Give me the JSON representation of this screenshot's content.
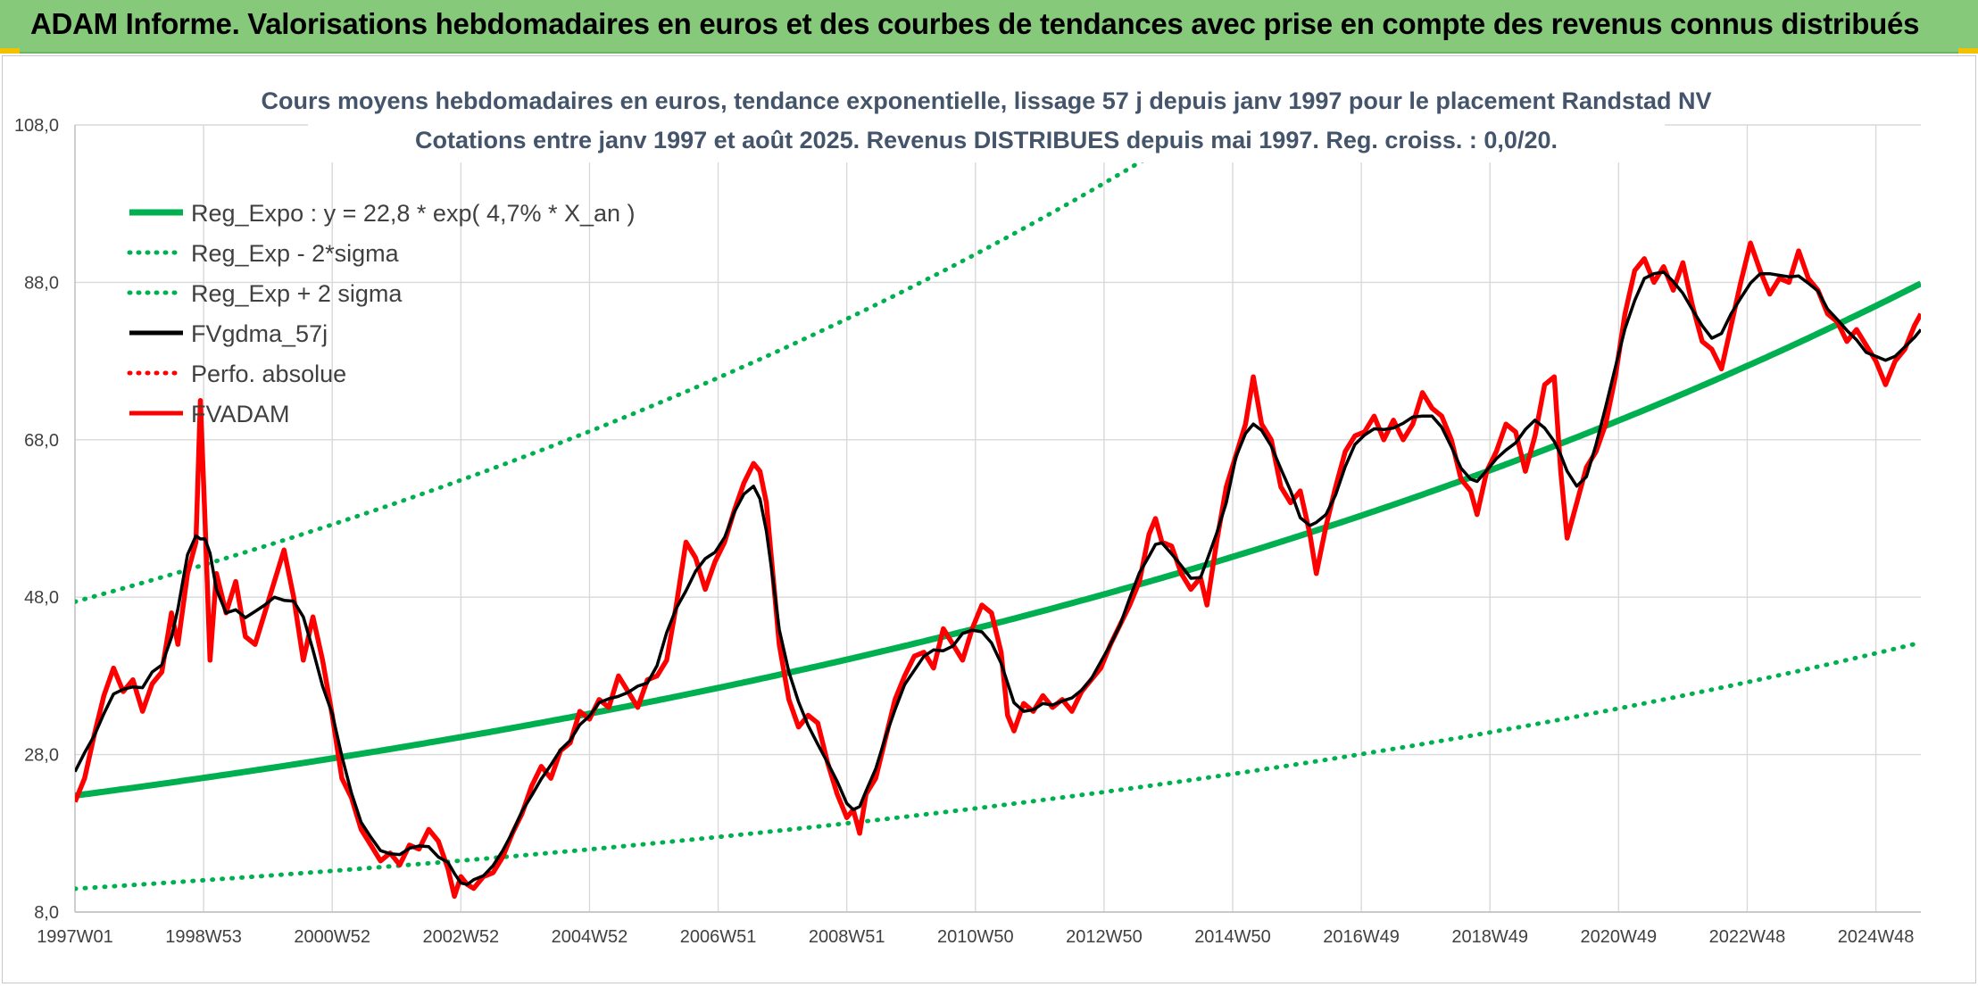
{
  "banner": {
    "title": "ADAM Informe. Valorisations hebdomadaires en euros et des courbes de tendances avec prise en compte des revenus connus distribués",
    "background": "#86c97a"
  },
  "chart_data": {
    "type": "line",
    "title_lines": [
      "Cours moyens hebdomadaires en euros, tendance exponentielle, lissage 57 j depuis janv 1997 pour le placement Randstad NV",
      "Cotations entre janv 1997 et août 2025. Revenus DISTRIBUES depuis mai 1997. Reg. croiss. : 0,0/20."
    ],
    "xlabel": "",
    "ylabel": "",
    "x_range": [
      1997.0,
      2025.7
    ],
    "ylim": [
      8,
      108
    ],
    "y_ticks": [
      "8,0",
      "28,0",
      "48,0",
      "68,0",
      "88,0",
      "108,0"
    ],
    "y_tick_values": [
      8,
      28,
      48,
      68,
      88,
      108
    ],
    "x_ticks": [
      {
        "label": "1997W01",
        "x": 1997.0
      },
      {
        "label": "1998W53",
        "x": 1999.0
      },
      {
        "label": "2000W52",
        "x": 2001.0
      },
      {
        "label": "2002W52",
        "x": 2003.0
      },
      {
        "label": "2004W52",
        "x": 2005.0
      },
      {
        "label": "2006W51",
        "x": 2007.0
      },
      {
        "label": "2008W51",
        "x": 2009.0
      },
      {
        "label": "2010W50",
        "x": 2011.0
      },
      {
        "label": "2012W50",
        "x": 2013.0
      },
      {
        "label": "2014W50",
        "x": 2015.0
      },
      {
        "label": "2016W49",
        "x": 2017.0
      },
      {
        "label": "2018W49",
        "x": 2019.0
      },
      {
        "label": "2020W49",
        "x": 2021.0
      },
      {
        "label": "2022W48",
        "x": 2023.0
      },
      {
        "label": "2024W48",
        "x": 2025.0
      }
    ],
    "grid": true,
    "legend_position": "top-left",
    "regression": {
      "intercept": 22.8,
      "rate": 0.047,
      "sigma_factor": 2.08
    },
    "series": [
      {
        "name": "Reg_Expo : y = 22,8 * exp( 4,7% *  X_an )",
        "color": "#00b050",
        "style": "solid",
        "kind": "reg"
      },
      {
        "name": "Reg_Exp - 2*sigma",
        "color": "#00b050",
        "style": "dotted",
        "kind": "reg_low"
      },
      {
        "name": "Reg_Exp + 2 sigma",
        "color": "#00b050",
        "style": "dotted",
        "kind": "reg_high"
      },
      {
        "name": "FVgdma_57j",
        "color": "#000000",
        "style": "solid",
        "kind": "smooth"
      },
      {
        "name": "Perfo. absolue",
        "color": "#ff0000",
        "style": "dotted",
        "kind": "none"
      },
      {
        "name": "FVADAM",
        "color": "#ff0000",
        "style": "solid",
        "kind": "price"
      }
    ],
    "price_points": [
      [
        1997.0,
        22.0
      ],
      [
        1997.15,
        25.0
      ],
      [
        1997.3,
        30.5
      ],
      [
        1997.45,
        35.5
      ],
      [
        1997.6,
        39.0
      ],
      [
        1997.75,
        36.0
      ],
      [
        1997.9,
        37.5
      ],
      [
        1998.05,
        33.5
      ],
      [
        1998.2,
        37.0
      ],
      [
        1998.35,
        38.5
      ],
      [
        1998.5,
        46.0
      ],
      [
        1998.6,
        42.0
      ],
      [
        1998.75,
        51.0
      ],
      [
        1998.88,
        55.0
      ],
      [
        1998.95,
        73.0
      ],
      [
        1999.02,
        58.0
      ],
      [
        1999.1,
        40.0
      ],
      [
        1999.2,
        51.0
      ],
      [
        1999.35,
        46.0
      ],
      [
        1999.5,
        50.0
      ],
      [
        1999.65,
        43.0
      ],
      [
        1999.8,
        42.0
      ],
      [
        1999.95,
        46.0
      ],
      [
        2000.1,
        50.0
      ],
      [
        2000.25,
        54.0
      ],
      [
        2000.4,
        48.0
      ],
      [
        2000.55,
        40.0
      ],
      [
        2000.7,
        45.5
      ],
      [
        2000.85,
        40.0
      ],
      [
        2001.0,
        33.0
      ],
      [
        2001.15,
        25.0
      ],
      [
        2001.3,
        22.5
      ],
      [
        2001.45,
        18.5
      ],
      [
        2001.6,
        16.5
      ],
      [
        2001.75,
        14.5
      ],
      [
        2001.9,
        15.5
      ],
      [
        2002.05,
        14.0
      ],
      [
        2002.2,
        16.5
      ],
      [
        2002.35,
        16.0
      ],
      [
        2002.5,
        18.5
      ],
      [
        2002.65,
        17.0
      ],
      [
        2002.8,
        13.5
      ],
      [
        2002.9,
        10.0
      ],
      [
        2003.0,
        12.5
      ],
      [
        2003.1,
        11.5
      ],
      [
        2003.2,
        11.0
      ],
      [
        2003.35,
        12.5
      ],
      [
        2003.5,
        13.0
      ],
      [
        2003.65,
        15.0
      ],
      [
        2003.8,
        18.0
      ],
      [
        2003.95,
        20.5
      ],
      [
        2004.1,
        24.0
      ],
      [
        2004.25,
        26.5
      ],
      [
        2004.4,
        25.0
      ],
      [
        2004.55,
        28.5
      ],
      [
        2004.7,
        29.5
      ],
      [
        2004.85,
        33.5
      ],
      [
        2005.0,
        32.5
      ],
      [
        2005.15,
        35.0
      ],
      [
        2005.3,
        34.0
      ],
      [
        2005.45,
        38.0
      ],
      [
        2005.6,
        36.0
      ],
      [
        2005.75,
        34.0
      ],
      [
        2005.9,
        37.5
      ],
      [
        2006.05,
        38.0
      ],
      [
        2006.2,
        40.0
      ],
      [
        2006.35,
        47.0
      ],
      [
        2006.5,
        55.0
      ],
      [
        2006.65,
        53.0
      ],
      [
        2006.8,
        49.0
      ],
      [
        2006.95,
        52.5
      ],
      [
        2007.1,
        55.0
      ],
      [
        2007.25,
        59.0
      ],
      [
        2007.4,
        62.5
      ],
      [
        2007.55,
        65.0
      ],
      [
        2007.65,
        64.0
      ],
      [
        2007.75,
        60.0
      ],
      [
        2007.85,
        51.0
      ],
      [
        2007.95,
        42.0
      ],
      [
        2008.1,
        35.0
      ],
      [
        2008.25,
        31.5
      ],
      [
        2008.4,
        33.0
      ],
      [
        2008.55,
        32.0
      ],
      [
        2008.7,
        27.0
      ],
      [
        2008.85,
        23.0
      ],
      [
        2009.0,
        20.0
      ],
      [
        2009.1,
        21.0
      ],
      [
        2009.2,
        18.0
      ],
      [
        2009.3,
        23.0
      ],
      [
        2009.45,
        25.0
      ],
      [
        2009.6,
        30.0
      ],
      [
        2009.75,
        35.0
      ],
      [
        2009.9,
        38.0
      ],
      [
        2010.05,
        40.5
      ],
      [
        2010.2,
        41.0
      ],
      [
        2010.35,
        39.0
      ],
      [
        2010.5,
        44.0
      ],
      [
        2010.65,
        42.0
      ],
      [
        2010.8,
        40.0
      ],
      [
        2010.95,
        44.0
      ],
      [
        2011.1,
        47.0
      ],
      [
        2011.25,
        46.0
      ],
      [
        2011.4,
        41.0
      ],
      [
        2011.5,
        33.0
      ],
      [
        2011.6,
        31.0
      ],
      [
        2011.75,
        34.5
      ],
      [
        2011.9,
        33.5
      ],
      [
        2012.05,
        35.5
      ],
      [
        2012.2,
        34.0
      ],
      [
        2012.35,
        35.0
      ],
      [
        2012.5,
        33.5
      ],
      [
        2012.65,
        36.0
      ],
      [
        2012.8,
        37.5
      ],
      [
        2012.95,
        39.0
      ],
      [
        2013.1,
        42.0
      ],
      [
        2013.25,
        44.5
      ],
      [
        2013.4,
        47.0
      ],
      [
        2013.55,
        50.0
      ],
      [
        2013.7,
        56.0
      ],
      [
        2013.8,
        58.0
      ],
      [
        2013.9,
        55.0
      ],
      [
        2014.05,
        54.5
      ],
      [
        2014.2,
        51.0
      ],
      [
        2014.35,
        49.0
      ],
      [
        2014.5,
        50.5
      ],
      [
        2014.6,
        47.0
      ],
      [
        2014.75,
        55.0
      ],
      [
        2014.9,
        62.0
      ],
      [
        2015.05,
        66.0
      ],
      [
        2015.2,
        70.0
      ],
      [
        2015.32,
        76.0
      ],
      [
        2015.45,
        70.0
      ],
      [
        2015.6,
        68.0
      ],
      [
        2015.75,
        62.0
      ],
      [
        2015.9,
        60.0
      ],
      [
        2016.05,
        61.5
      ],
      [
        2016.2,
        56.0
      ],
      [
        2016.3,
        51.0
      ],
      [
        2016.45,
        57.0
      ],
      [
        2016.6,
        62.0
      ],
      [
        2016.75,
        66.5
      ],
      [
        2016.9,
        68.5
      ],
      [
        2017.05,
        69.0
      ],
      [
        2017.2,
        71.0
      ],
      [
        2017.35,
        68.0
      ],
      [
        2017.5,
        70.5
      ],
      [
        2017.65,
        68.0
      ],
      [
        2017.8,
        70.0
      ],
      [
        2017.95,
        74.0
      ],
      [
        2018.1,
        72.0
      ],
      [
        2018.25,
        71.0
      ],
      [
        2018.4,
        68.0
      ],
      [
        2018.55,
        63.0
      ],
      [
        2018.7,
        61.5
      ],
      [
        2018.8,
        58.5
      ],
      [
        2018.95,
        64.0
      ],
      [
        2019.1,
        66.5
      ],
      [
        2019.25,
        70.0
      ],
      [
        2019.4,
        69.0
      ],
      [
        2019.55,
        64.0
      ],
      [
        2019.7,
        68.5
      ],
      [
        2019.85,
        75.0
      ],
      [
        2020.0,
        76.0
      ],
      [
        2020.1,
        64.0
      ],
      [
        2020.2,
        55.5
      ],
      [
        2020.35,
        60.0
      ],
      [
        2020.5,
        64.5
      ],
      [
        2020.65,
        66.5
      ],
      [
        2020.8,
        70.0
      ],
      [
        2020.95,
        76.0
      ],
      [
        2021.1,
        84.0
      ],
      [
        2021.25,
        89.5
      ],
      [
        2021.4,
        91.0
      ],
      [
        2021.55,
        88.0
      ],
      [
        2021.7,
        90.0
      ],
      [
        2021.85,
        87.0
      ],
      [
        2022.0,
        90.5
      ],
      [
        2022.15,
        85.0
      ],
      [
        2022.3,
        80.5
      ],
      [
        2022.45,
        79.5
      ],
      [
        2022.6,
        77.0
      ],
      [
        2022.75,
        82.5
      ],
      [
        2022.9,
        88.0
      ],
      [
        2023.05,
        93.0
      ],
      [
        2023.2,
        89.5
      ],
      [
        2023.35,
        86.5
      ],
      [
        2023.5,
        88.5
      ],
      [
        2023.65,
        88.0
      ],
      [
        2023.8,
        92.0
      ],
      [
        2023.95,
        88.5
      ],
      [
        2024.1,
        87.0
      ],
      [
        2024.25,
        84.0
      ],
      [
        2024.4,
        83.0
      ],
      [
        2024.55,
        80.5
      ],
      [
        2024.7,
        82.0
      ],
      [
        2024.85,
        80.0
      ],
      [
        2025.0,
        78.0
      ],
      [
        2025.15,
        75.0
      ],
      [
        2025.3,
        78.0
      ],
      [
        2025.45,
        79.5
      ],
      [
        2025.6,
        82.5
      ],
      [
        2025.7,
        84.0
      ]
    ]
  }
}
